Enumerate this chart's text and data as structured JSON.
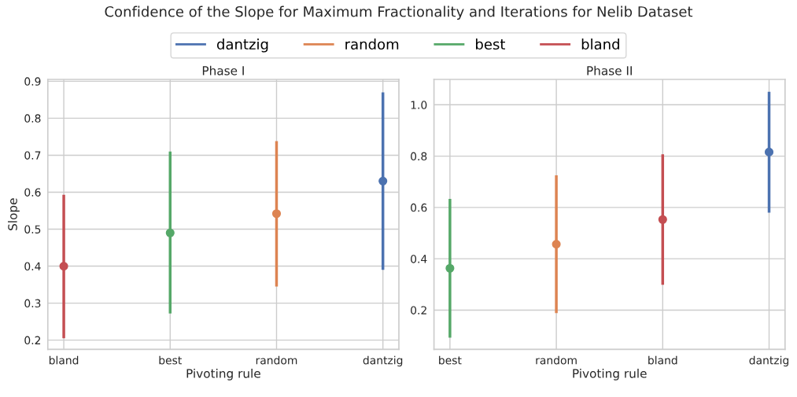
{
  "chart_data": [
    {
      "type": "scatter",
      "title": "Phase I",
      "xlabel": "Pivoting rule",
      "ylabel": "Slope",
      "categories": [
        "bland",
        "best",
        "random",
        "dantzig"
      ],
      "ylim": [
        0.175,
        0.905
      ],
      "yticks": [
        0.2,
        0.3,
        0.4,
        0.5,
        0.6,
        0.7,
        0.8,
        0.9
      ],
      "grid": true,
      "marker": "circle",
      "legend": "top",
      "series": [
        {
          "name": "dantzig",
          "color": "#4c72b0",
          "values": [
            null,
            null,
            null,
            0.63
          ],
          "errors": [
            null,
            null,
            null,
            [
              0.39,
              0.87
            ]
          ]
        },
        {
          "name": "random",
          "color": "#dd8452",
          "values": [
            null,
            null,
            0.542,
            null
          ],
          "errors": [
            null,
            null,
            [
              0.345,
              0.738
            ],
            null
          ]
        },
        {
          "name": "best",
          "color": "#55a868",
          "values": [
            null,
            0.49,
            null,
            null
          ],
          "errors": [
            null,
            [
              0.272,
              0.71
            ],
            null,
            null
          ]
        },
        {
          "name": "bland",
          "color": "#c44e52",
          "values": [
            0.4,
            null,
            null,
            null
          ],
          "errors": [
            [
              0.205,
              0.593
            ],
            null,
            null,
            null
          ]
        }
      ]
    },
    {
      "type": "scatter",
      "title": "Phase II",
      "xlabel": "Pivoting rule",
      "categories": [
        "best",
        "random",
        "bland",
        "dantzig"
      ],
      "ylim": [
        0.047,
        1.099
      ],
      "yticks": [
        0.2,
        0.4,
        0.6,
        0.8,
        {
          "value": 1.0,
          "label": "1.0"
        }
      ],
      "grid": true,
      "marker": "circle",
      "series": [
        {
          "color": "#4c72b0",
          "values": [
            null,
            null,
            null,
            0.816
          ],
          "errors": [
            null,
            null,
            null,
            [
              0.58,
              1.051
            ]
          ]
        },
        {
          "color": "#dd8452",
          "values": [
            null,
            0.457,
            null,
            null
          ],
          "errors": [
            null,
            [
              0.188,
              0.725
            ],
            null,
            null
          ]
        },
        {
          "color": "#55a868",
          "values": [
            0.363,
            null,
            null,
            null
          ],
          "errors": [
            [
              0.093,
              0.633
            ],
            null,
            null,
            null
          ]
        },
        {
          "color": "#c44e52",
          "values": [
            null,
            null,
            0.553,
            null
          ],
          "errors": [
            null,
            null,
            [
              0.299,
              0.807
            ],
            null
          ]
        }
      ]
    },
    {
      "type": "other",
      "title": "Confidence of the Slope for Maximum Fractionality and Iterations for Nelib Dataset"
    }
  ]
}
